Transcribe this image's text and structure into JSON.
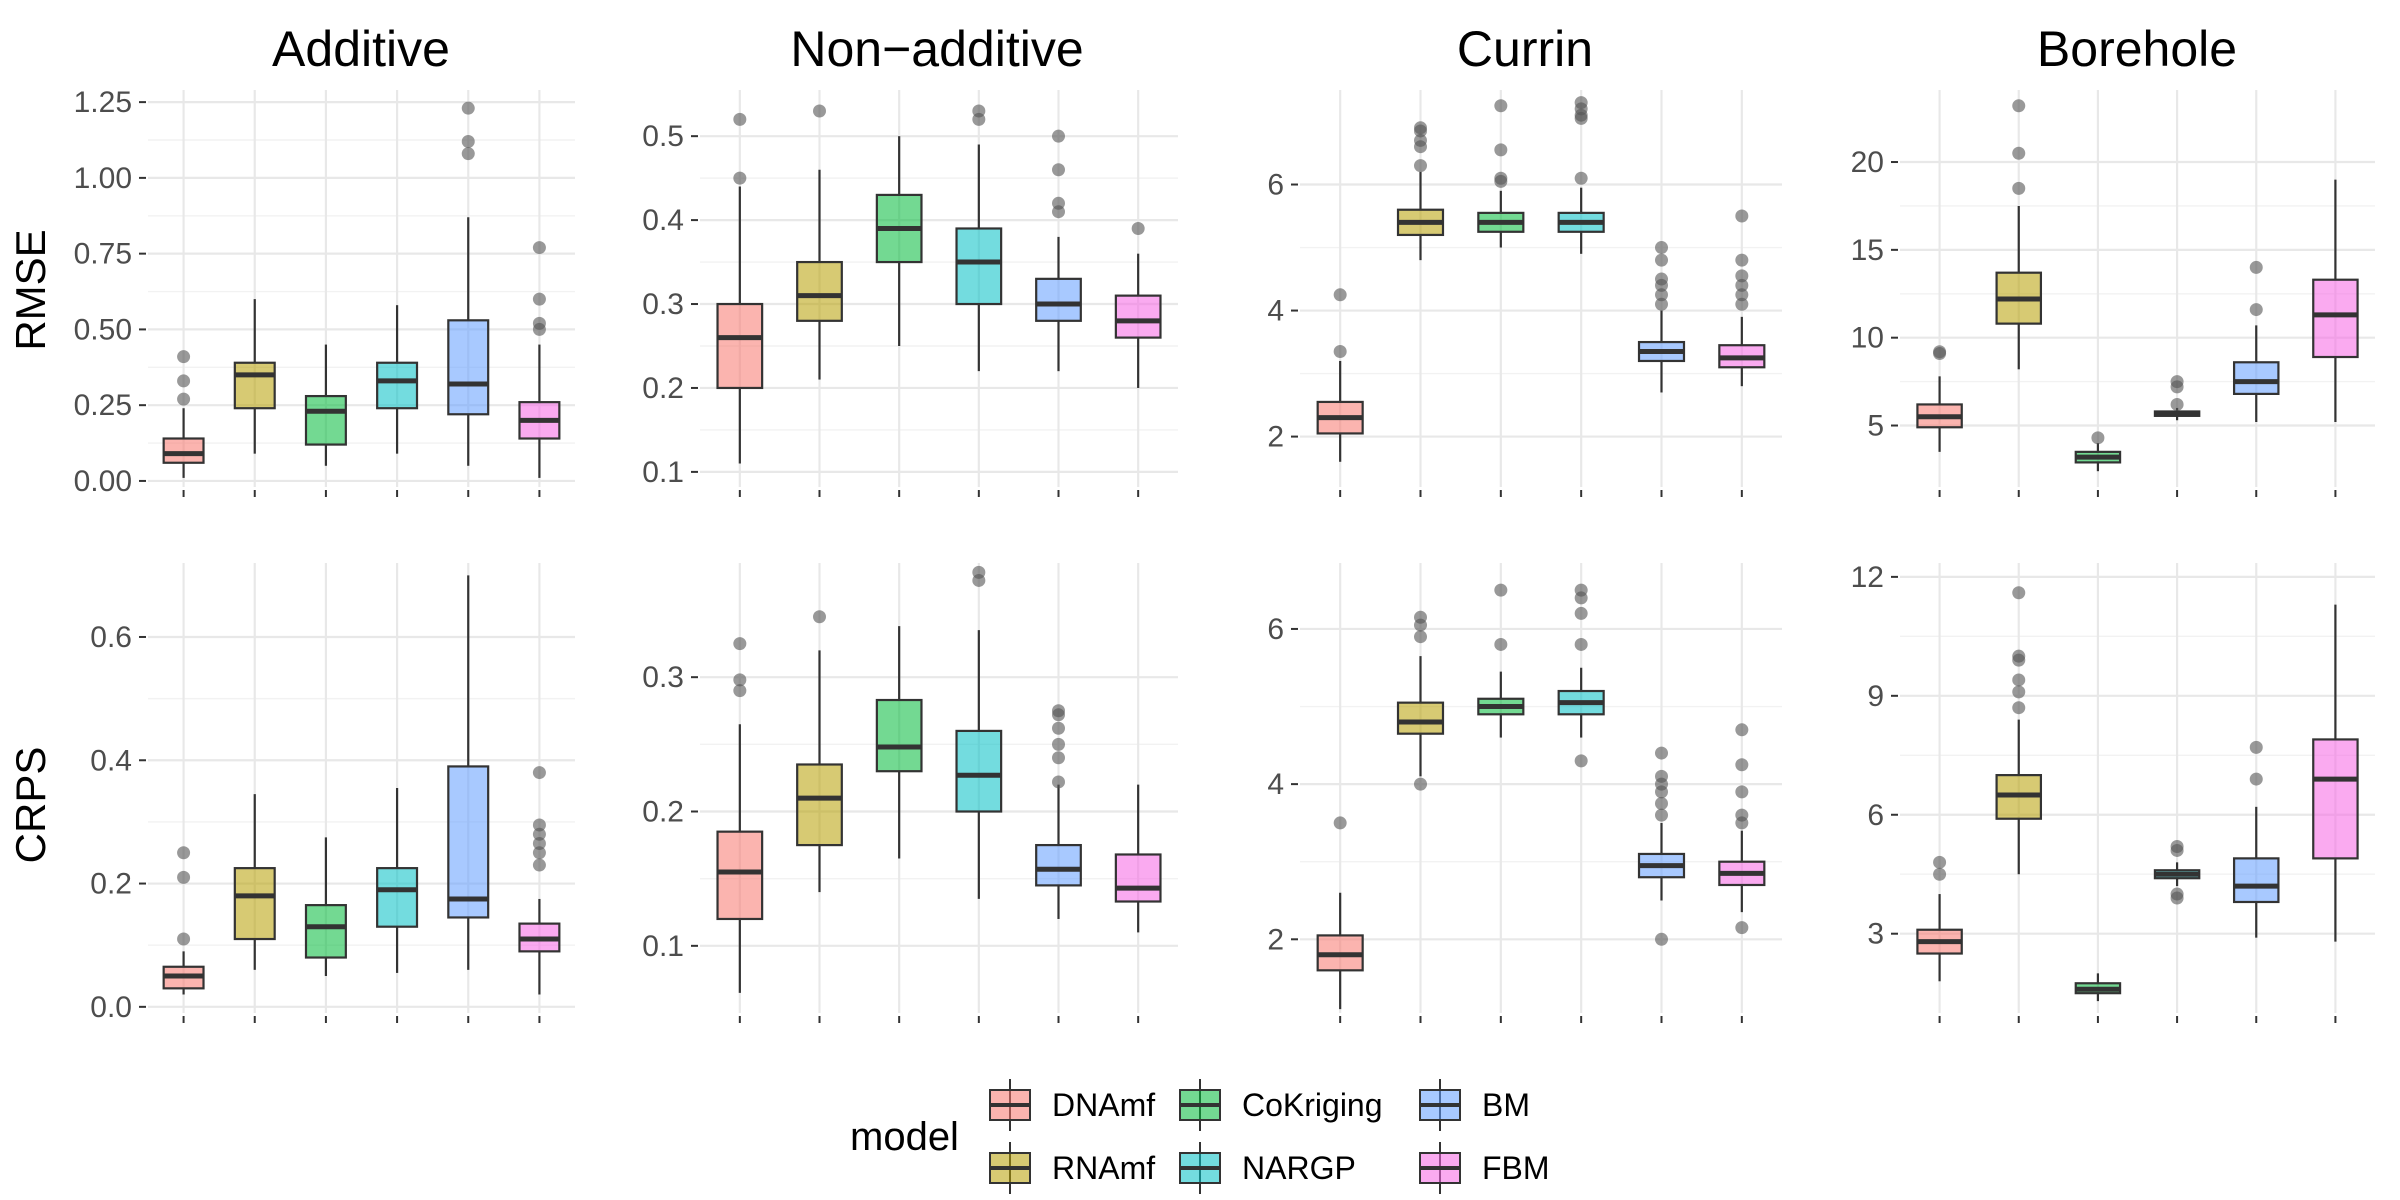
{
  "chart_data": {
    "type": "box",
    "legend": {
      "title": "model",
      "position": "bottom",
      "entries": [
        {
          "name": "DNAmf",
          "color": "#F8766D"
        },
        {
          "name": "RNAmf",
          "color": "#B79F00"
        },
        {
          "name": "CoKriging",
          "color": "#00BA38"
        },
        {
          "name": "NARGP",
          "color": "#00BFC4"
        },
        {
          "name": "BM",
          "color": "#619CFF"
        },
        {
          "name": "FBM",
          "color": "#F564E3"
        }
      ]
    },
    "columns": [
      "Additive",
      "Non−additive",
      "Currin",
      "Borehole"
    ],
    "rows": [
      "RMSE",
      "CRPS"
    ],
    "categories": [
      "DNAmf",
      "RNAmf",
      "CoKriging",
      "NARGP",
      "BM",
      "FBM"
    ],
    "grid": true,
    "panels": [
      {
        "column": "Additive",
        "row": "RMSE",
        "ylim": [
          -0.02,
          1.29
        ],
        "yticks": [
          0.0,
          0.25,
          0.5,
          0.75,
          1.0,
          1.25
        ],
        "ytick_labels": [
          "0.00",
          "0.25",
          "0.50",
          "0.75",
          "1.00",
          "1.25"
        ],
        "boxes": [
          {
            "model": "DNAmf",
            "low": 0.01,
            "q1": 0.06,
            "median": 0.09,
            "q3": 0.14,
            "high": 0.24,
            "outliers": [
              0.27,
              0.33,
              0.41
            ]
          },
          {
            "model": "RNAmf",
            "low": 0.09,
            "q1": 0.24,
            "median": 0.35,
            "q3": 0.39,
            "high": 0.6,
            "outliers": []
          },
          {
            "model": "CoKriging",
            "low": 0.05,
            "q1": 0.12,
            "median": 0.23,
            "q3": 0.28,
            "high": 0.45,
            "outliers": []
          },
          {
            "model": "NARGP",
            "low": 0.09,
            "q1": 0.24,
            "median": 0.33,
            "q3": 0.39,
            "high": 0.58,
            "outliers": []
          },
          {
            "model": "BM",
            "low": 0.05,
            "q1": 0.22,
            "median": 0.32,
            "q3": 0.53,
            "high": 0.87,
            "outliers": [
              1.08,
              1.12,
              1.23
            ]
          },
          {
            "model": "FBM",
            "low": 0.01,
            "q1": 0.14,
            "median": 0.2,
            "q3": 0.26,
            "high": 0.45,
            "outliers": [
              0.5,
              0.52,
              0.6,
              0.77
            ]
          }
        ]
      },
      {
        "column": "Non−additive",
        "row": "RMSE",
        "ylim": [
          0.082,
          0.555
        ],
        "yticks": [
          0.1,
          0.2,
          0.3,
          0.4,
          0.5
        ],
        "ytick_labels": [
          "0.1",
          "0.2",
          "0.3",
          "0.4",
          "0.5"
        ],
        "boxes": [
          {
            "model": "DNAmf",
            "low": 0.11,
            "q1": 0.2,
            "median": 0.26,
            "q3": 0.3,
            "high": 0.44,
            "outliers": [
              0.45,
              0.52
            ]
          },
          {
            "model": "RNAmf",
            "low": 0.21,
            "q1": 0.28,
            "median": 0.31,
            "q3": 0.35,
            "high": 0.46,
            "outliers": [
              0.53
            ]
          },
          {
            "model": "CoKriging",
            "low": 0.25,
            "q1": 0.35,
            "median": 0.39,
            "q3": 0.43,
            "high": 0.5,
            "outliers": []
          },
          {
            "model": "NARGP",
            "low": 0.22,
            "q1": 0.3,
            "median": 0.35,
            "q3": 0.39,
            "high": 0.49,
            "outliers": [
              0.52,
              0.53
            ]
          },
          {
            "model": "BM",
            "low": 0.22,
            "q1": 0.28,
            "median": 0.3,
            "q3": 0.33,
            "high": 0.38,
            "outliers": [
              0.41,
              0.42,
              0.46,
              0.5
            ]
          },
          {
            "model": "FBM",
            "low": 0.2,
            "q1": 0.26,
            "median": 0.28,
            "q3": 0.31,
            "high": 0.36,
            "outliers": [
              0.39
            ]
          }
        ]
      },
      {
        "column": "Currin",
        "row": "RMSE",
        "ylim": [
          1.2,
          7.5
        ],
        "yticks": [
          2,
          4,
          6
        ],
        "ytick_labels": [
          "2",
          "4",
          "6"
        ],
        "boxes": [
          {
            "model": "DNAmf",
            "low": 1.6,
            "q1": 2.05,
            "median": 2.3,
            "q3": 2.55,
            "high": 3.2,
            "outliers": [
              3.35,
              4.25
            ]
          },
          {
            "model": "RNAmf",
            "low": 4.8,
            "q1": 5.2,
            "median": 5.4,
            "q3": 5.6,
            "high": 6.2,
            "outliers": [
              6.3,
              6.6,
              6.7,
              6.85,
              6.9
            ]
          },
          {
            "model": "CoKriging",
            "low": 5.0,
            "q1": 5.25,
            "median": 5.4,
            "q3": 5.55,
            "high": 5.9,
            "outliers": [
              6.05,
              6.1,
              6.55,
              7.25
            ]
          },
          {
            "model": "NARGP",
            "low": 4.9,
            "q1": 5.25,
            "median": 5.4,
            "q3": 5.55,
            "high": 5.95,
            "outliers": [
              6.1,
              7.05,
              7.1,
              7.2,
              7.3
            ]
          },
          {
            "model": "BM",
            "low": 2.7,
            "q1": 3.2,
            "median": 3.35,
            "q3": 3.5,
            "high": 4.0,
            "outliers": [
              4.1,
              4.25,
              4.4,
              4.5,
              4.8,
              5.0
            ]
          },
          {
            "model": "FBM",
            "low": 2.8,
            "q1": 3.1,
            "median": 3.25,
            "q3": 3.45,
            "high": 3.9,
            "outliers": [
              4.1,
              4.25,
              4.4,
              4.55,
              4.8,
              5.5
            ]
          }
        ]
      },
      {
        "column": "Borehole",
        "row": "RMSE",
        "ylim": [
          1.5,
          24.1
        ],
        "yticks": [
          5,
          10,
          15,
          20
        ],
        "ytick_labels": [
          "5",
          "10",
          "15",
          "20"
        ],
        "boxes": [
          {
            "model": "DNAmf",
            "low": 3.5,
            "q1": 4.9,
            "median": 5.5,
            "q3": 6.2,
            "high": 7.8,
            "outliers": [
              9.1,
              9.2
            ]
          },
          {
            "model": "RNAmf",
            "low": 8.2,
            "q1": 10.8,
            "median": 12.2,
            "q3": 13.7,
            "high": 17.5,
            "outliers": [
              18.5,
              20.5,
              23.2
            ]
          },
          {
            "model": "CoKriging",
            "low": 2.4,
            "q1": 2.9,
            "median": 3.2,
            "q3": 3.5,
            "high": 4.0,
            "outliers": [
              4.3
            ]
          },
          {
            "model": "NARGP",
            "low": 5.3,
            "q1": 5.55,
            "median": 5.65,
            "q3": 5.8,
            "high": 6.0,
            "outliers": [
              6.2,
              7.2,
              7.5
            ]
          },
          {
            "model": "BM",
            "low": 5.2,
            "q1": 6.8,
            "median": 7.5,
            "q3": 8.6,
            "high": 10.7,
            "outliers": [
              11.6,
              14.0
            ]
          },
          {
            "model": "FBM",
            "low": 5.2,
            "q1": 8.9,
            "median": 11.3,
            "q3": 13.3,
            "high": 19.0,
            "outliers": []
          }
        ]
      },
      {
        "column": "Additive",
        "row": "CRPS",
        "ylim": [
          -0.01,
          0.72
        ],
        "yticks": [
          0.0,
          0.2,
          0.4,
          0.6
        ],
        "ytick_labels": [
          "0.0",
          "0.2",
          "0.4",
          "0.6"
        ],
        "boxes": [
          {
            "model": "DNAmf",
            "low": 0.02,
            "q1": 0.03,
            "median": 0.05,
            "q3": 0.065,
            "high": 0.09,
            "outliers": [
              0.11,
              0.21,
              0.25
            ]
          },
          {
            "model": "RNAmf",
            "low": 0.06,
            "q1": 0.11,
            "median": 0.18,
            "q3": 0.225,
            "high": 0.345,
            "outliers": []
          },
          {
            "model": "CoKriging",
            "low": 0.05,
            "q1": 0.08,
            "median": 0.13,
            "q3": 0.165,
            "high": 0.275,
            "outliers": []
          },
          {
            "model": "NARGP",
            "low": 0.055,
            "q1": 0.13,
            "median": 0.19,
            "q3": 0.225,
            "high": 0.355,
            "outliers": []
          },
          {
            "model": "BM",
            "low": 0.06,
            "q1": 0.145,
            "median": 0.175,
            "q3": 0.39,
            "high": 0.7,
            "outliers": []
          },
          {
            "model": "FBM",
            "low": 0.02,
            "q1": 0.09,
            "median": 0.11,
            "q3": 0.135,
            "high": 0.175,
            "outliers": [
              0.23,
              0.25,
              0.265,
              0.28,
              0.295,
              0.38
            ]
          }
        ]
      },
      {
        "column": "Non−additive",
        "row": "CRPS",
        "ylim": [
          0.05,
          0.385
        ],
        "yticks": [
          0.1,
          0.2,
          0.3
        ],
        "ytick_labels": [
          "0.1",
          "0.2",
          "0.3"
        ],
        "boxes": [
          {
            "model": "DNAmf",
            "low": 0.065,
            "q1": 0.12,
            "median": 0.155,
            "q3": 0.185,
            "high": 0.265,
            "outliers": [
              0.29,
              0.298,
              0.325
            ]
          },
          {
            "model": "RNAmf",
            "low": 0.14,
            "q1": 0.175,
            "median": 0.21,
            "q3": 0.235,
            "high": 0.32,
            "outliers": [
              0.345
            ]
          },
          {
            "model": "CoKriging",
            "low": 0.165,
            "q1": 0.23,
            "median": 0.248,
            "q3": 0.283,
            "high": 0.338,
            "outliers": []
          },
          {
            "model": "NARGP",
            "low": 0.135,
            "q1": 0.2,
            "median": 0.227,
            "q3": 0.26,
            "high": 0.335,
            "outliers": [
              0.372,
              0.378
            ]
          },
          {
            "model": "BM",
            "low": 0.12,
            "q1": 0.145,
            "median": 0.157,
            "q3": 0.175,
            "high": 0.22,
            "outliers": [
              0.222,
              0.24,
              0.25,
              0.262,
              0.272,
              0.275
            ]
          },
          {
            "model": "FBM",
            "low": 0.11,
            "q1": 0.133,
            "median": 0.143,
            "q3": 0.168,
            "high": 0.22,
            "outliers": []
          }
        ]
      },
      {
        "column": "Currin",
        "row": "CRPS",
        "ylim": [
          1.05,
          6.85
        ],
        "yticks": [
          2,
          4,
          6
        ],
        "ytick_labels": [
          "2",
          "4",
          "6"
        ],
        "boxes": [
          {
            "model": "DNAmf",
            "low": 1.1,
            "q1": 1.6,
            "median": 1.8,
            "q3": 2.05,
            "high": 2.6,
            "outliers": [
              3.5
            ]
          },
          {
            "model": "RNAmf",
            "low": 4.1,
            "q1": 4.65,
            "median": 4.8,
            "q3": 5.05,
            "high": 5.65,
            "outliers": [
              4.0,
              5.9,
              6.05,
              6.15
            ]
          },
          {
            "model": "CoKriging",
            "low": 4.6,
            "q1": 4.9,
            "median": 5.0,
            "q3": 5.1,
            "high": 5.45,
            "outliers": [
              5.8,
              6.5
            ]
          },
          {
            "model": "NARGP",
            "low": 4.6,
            "q1": 4.9,
            "median": 5.05,
            "q3": 5.2,
            "high": 5.5,
            "outliers": [
              4.3,
              5.8,
              6.2,
              6.4,
              6.5
            ]
          },
          {
            "model": "BM",
            "low": 2.5,
            "q1": 2.8,
            "median": 2.95,
            "q3": 3.1,
            "high": 3.5,
            "outliers": [
              2.0,
              3.6,
              3.75,
              3.9,
              4.0,
              4.1,
              4.4
            ]
          },
          {
            "model": "FBM",
            "low": 2.35,
            "q1": 2.7,
            "median": 2.85,
            "q3": 3.0,
            "high": 3.4,
            "outliers": [
              2.15,
              3.5,
              3.6,
              3.9,
              4.25,
              4.7
            ]
          }
        ]
      },
      {
        "column": "Borehole",
        "row": "CRPS",
        "ylim": [
          1.0,
          12.35
        ],
        "yticks": [
          3,
          6,
          9,
          12
        ],
        "ytick_labels": [
          "3",
          "6",
          "9",
          "12"
        ],
        "boxes": [
          {
            "model": "DNAmf",
            "low": 1.8,
            "q1": 2.5,
            "median": 2.8,
            "q3": 3.1,
            "high": 4.0,
            "outliers": [
              4.5,
              4.8
            ]
          },
          {
            "model": "RNAmf",
            "low": 4.5,
            "q1": 5.9,
            "median": 6.5,
            "q3": 7.0,
            "high": 8.4,
            "outliers": [
              8.7,
              9.1,
              9.4,
              9.9,
              10.0,
              11.6
            ]
          },
          {
            "model": "CoKriging",
            "low": 1.3,
            "q1": 1.5,
            "median": 1.6,
            "q3": 1.75,
            "high": 2.0,
            "outliers": []
          },
          {
            "model": "NARGP",
            "low": 4.2,
            "q1": 4.4,
            "median": 4.5,
            "q3": 4.6,
            "high": 4.8,
            "outliers": [
              3.9,
              4.0,
              5.1,
              5.2
            ]
          },
          {
            "model": "BM",
            "low": 2.9,
            "q1": 3.8,
            "median": 4.2,
            "q3": 4.9,
            "high": 6.2,
            "outliers": [
              6.9,
              7.7
            ]
          },
          {
            "model": "FBM",
            "low": 2.8,
            "q1": 4.9,
            "median": 6.9,
            "q3": 7.9,
            "high": 11.3,
            "outliers": []
          }
        ]
      }
    ]
  }
}
